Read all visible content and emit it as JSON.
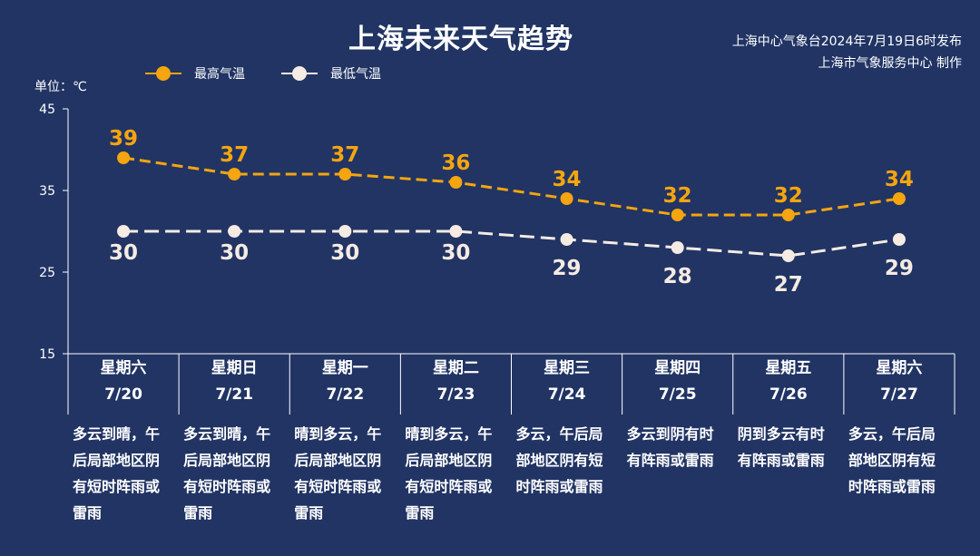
{
  "title": "上海未来天气趋势",
  "source_line1": "上海中心气象台2024年7月19日6时发布",
  "source_line2": "上海市气象服务中心 制作",
  "unit_label": "单位：℃",
  "colors": {
    "background": "#213464",
    "high": "#f5a50f",
    "low": "#f5ebe3",
    "grid": "#ffffff"
  },
  "chart_data": {
    "type": "line",
    "title": "上海未来天气趋势",
    "ylabel": "单位：℃",
    "ylim": [
      15,
      45
    ],
    "yticks": [
      15,
      25,
      35,
      45
    ],
    "categories": [
      "7/20",
      "7/21",
      "7/22",
      "7/23",
      "7/24",
      "7/25",
      "7/26",
      "7/27"
    ],
    "legend_position": "top-left",
    "series": [
      {
        "name": "最高气温",
        "values": [
          39,
          37,
          37,
          36,
          34,
          32,
          32,
          34
        ],
        "color": "#f5a50f",
        "style": "dashed"
      },
      {
        "name": "最低气温",
        "values": [
          30,
          30,
          30,
          30,
          29,
          28,
          27,
          29
        ],
        "color": "#f5ebe3",
        "style": "dashed"
      }
    ]
  },
  "days": [
    {
      "weekday": "星期六",
      "date": "7/20",
      "desc": "多云到晴，午后局部地区阴有短时阵雨或雷雨"
    },
    {
      "weekday": "星期日",
      "date": "7/21",
      "desc": "多云到晴，午后局部地区阴有短时阵雨或雷雨"
    },
    {
      "weekday": "星期一",
      "date": "7/22",
      "desc": "晴到多云，午后局部地区阴有短时阵雨或雷雨"
    },
    {
      "weekday": "星期二",
      "date": "7/23",
      "desc": "晴到多云，午后局部地区阴有短时阵雨或雷雨"
    },
    {
      "weekday": "星期三",
      "date": "7/24",
      "desc": "多云，午后局部地区阴有短时阵雨或雷雨"
    },
    {
      "weekday": "星期四",
      "date": "7/25",
      "desc": "多云到阴有时有阵雨或雷雨"
    },
    {
      "weekday": "星期五",
      "date": "7/26",
      "desc": "阴到多云有时有阵雨或雷雨"
    },
    {
      "weekday": "星期六",
      "date": "7/27",
      "desc": "多云，午后局部地区阴有短时阵雨或雷雨"
    }
  ]
}
